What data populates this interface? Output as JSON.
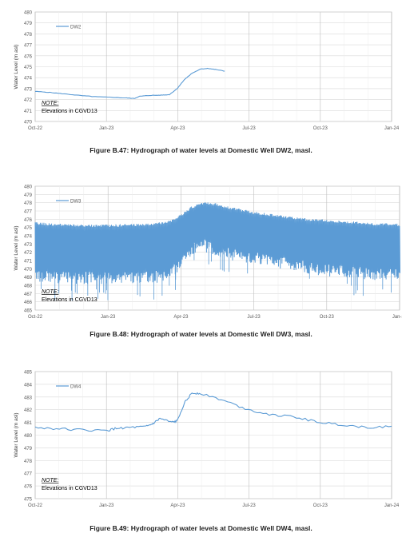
{
  "chart_data": [
    {
      "type": "line",
      "series": [
        {
          "name": "DW2",
          "color": "#5b9bd5"
        }
      ],
      "ylabel": "Water Level (m asl)",
      "ylim": [
        470,
        480
      ],
      "y_ticks": [
        "470",
        "471",
        "472",
        "473",
        "474",
        "475",
        "476",
        "477",
        "478",
        "479",
        "480"
      ],
      "x_ticks": [
        "Oct-22",
        "Jan-23",
        "Apr-23",
        "Jul-23",
        "Oct-23",
        "Jan-24"
      ],
      "x_range": [
        "2022-10-01",
        "2024-01-01"
      ],
      "grid": true,
      "legend": "top-left",
      "note_title": "NOTE:",
      "note_text": "Elevations in CGVD13",
      "caption": "Figure B.47: Hydrograph of water levels at Domestic Well DW2, masl.",
      "points": [
        [
          "2022-10-01",
          472.75
        ],
        [
          "2022-10-20",
          472.65
        ],
        [
          "2022-11-10",
          472.5
        ],
        [
          "2022-12-01",
          472.35
        ],
        [
          "2022-12-20",
          472.25
        ],
        [
          "2023-01-10",
          472.2
        ],
        [
          "2023-01-25",
          472.15
        ],
        [
          "2023-02-05",
          472.1
        ],
        [
          "2023-02-12",
          472.3
        ],
        [
          "2023-02-25",
          472.38
        ],
        [
          "2023-03-10",
          472.4
        ],
        [
          "2023-03-22",
          472.45
        ],
        [
          "2023-04-01",
          473.0
        ],
        [
          "2023-04-10",
          473.8
        ],
        [
          "2023-04-20",
          474.4
        ],
        [
          "2023-05-01",
          474.78
        ],
        [
          "2023-05-10",
          474.85
        ],
        [
          "2023-05-20",
          474.75
        ],
        [
          "2023-06-01",
          474.6
        ]
      ]
    },
    {
      "type": "line",
      "series": [
        {
          "name": "DW3",
          "color": "#5b9bd5"
        }
      ],
      "ylabel": "Water Level (m asl)",
      "ylim": [
        465,
        480
      ],
      "y_ticks": [
        "465",
        "466",
        "467",
        "468",
        "469",
        "470",
        "471",
        "472",
        "473",
        "474",
        "475",
        "476",
        "477",
        "478",
        "479",
        "480"
      ],
      "x_ticks": [
        "Oct-22",
        "Jan-23",
        "Apr-23",
        "Jul-23",
        "Oct-23",
        "Jan-24"
      ],
      "x_range": [
        "2022-10-01",
        "2024-01-01"
      ],
      "grid": true,
      "legend": "top-left",
      "note_title": "NOTE:",
      "note_text": "Elevations in CGVD13",
      "caption": "Figure B.48: Hydrograph of water levels at Domestic Well DW3, masl.",
      "points_upper": [
        [
          "2022-10-01",
          475.5
        ],
        [
          "2022-11-01",
          475.3
        ],
        [
          "2022-12-01",
          475.2
        ],
        [
          "2023-01-01",
          475.2
        ],
        [
          "2023-02-01",
          475.3
        ],
        [
          "2023-03-01",
          475.4
        ],
        [
          "2023-03-20",
          475.8
        ],
        [
          "2023-04-01",
          476.4
        ],
        [
          "2023-04-15",
          477.4
        ],
        [
          "2023-05-01",
          478.0
        ],
        [
          "2023-05-15",
          477.8
        ],
        [
          "2023-06-01",
          477.4
        ],
        [
          "2023-07-01",
          476.8
        ],
        [
          "2023-08-01",
          476.4
        ],
        [
          "2023-09-01",
          476.0
        ],
        [
          "2023-10-01",
          475.8
        ],
        [
          "2023-11-01",
          475.6
        ],
        [
          "2023-12-01",
          475.4
        ],
        [
          "2024-01-01",
          475.3
        ]
      ],
      "points_lower": [
        [
          "2022-10-01",
          468.8
        ],
        [
          "2022-11-01",
          468.6
        ],
        [
          "2022-12-01",
          468.6
        ],
        [
          "2023-01-01",
          468.6
        ],
        [
          "2023-02-01",
          468.6
        ],
        [
          "2023-03-01",
          468.7
        ],
        [
          "2023-03-20",
          469.0
        ],
        [
          "2023-04-01",
          470.5
        ],
        [
          "2023-04-15",
          472.0
        ],
        [
          "2023-05-01",
          472.5
        ],
        [
          "2023-05-15",
          472.0
        ],
        [
          "2023-06-01",
          471.5
        ],
        [
          "2023-07-01",
          471.0
        ],
        [
          "2023-08-01",
          470.5
        ],
        [
          "2023-09-01",
          470.0
        ],
        [
          "2023-10-01",
          469.5
        ],
        [
          "2023-11-01",
          469.2
        ],
        [
          "2023-12-01",
          469.0
        ],
        [
          "2024-01-01",
          469.0
        ]
      ]
    },
    {
      "type": "line",
      "series": [
        {
          "name": "DW4",
          "color": "#5b9bd5"
        }
      ],
      "ylabel": "Water Level (m asl)",
      "ylim": [
        475,
        485
      ],
      "y_ticks": [
        "475",
        "476",
        "477",
        "478",
        "479",
        "480",
        "481",
        "482",
        "483",
        "484",
        "485"
      ],
      "x_ticks": [
        "Oct-22",
        "Jan-23",
        "Apr-23",
        "Jul-23",
        "Oct-23",
        "Jan-24"
      ],
      "x_range": [
        "2022-10-01",
        "2024-01-01"
      ],
      "grid": true,
      "legend": "top-left",
      "note_title": "NOTE:",
      "note_text": "Elevations in CGVD13",
      "caption": "Figure B.49: Hydrograph of water levels at Domestic Well DW4, masl.",
      "points": [
        [
          "2022-10-01",
          480.6
        ],
        [
          "2022-11-01",
          480.5
        ],
        [
          "2022-12-01",
          480.4
        ],
        [
          "2023-01-01",
          480.35
        ],
        [
          "2023-01-15",
          480.55
        ],
        [
          "2023-02-01",
          480.6
        ],
        [
          "2023-02-20",
          480.65
        ],
        [
          "2023-03-01",
          480.9
        ],
        [
          "2023-03-10",
          481.3
        ],
        [
          "2023-03-25",
          481.0
        ],
        [
          "2023-04-01",
          481.1
        ],
        [
          "2023-04-10",
          482.5
        ],
        [
          "2023-04-20",
          483.3
        ],
        [
          "2023-05-01",
          483.3
        ],
        [
          "2023-06-01",
          482.7
        ],
        [
          "2023-07-01",
          482.0
        ],
        [
          "2023-08-01",
          481.6
        ],
        [
          "2023-09-01",
          481.4
        ],
        [
          "2023-10-01",
          481.0
        ],
        [
          "2023-11-01",
          480.8
        ],
        [
          "2023-12-01",
          480.6
        ],
        [
          "2024-01-01",
          480.7
        ]
      ]
    }
  ]
}
